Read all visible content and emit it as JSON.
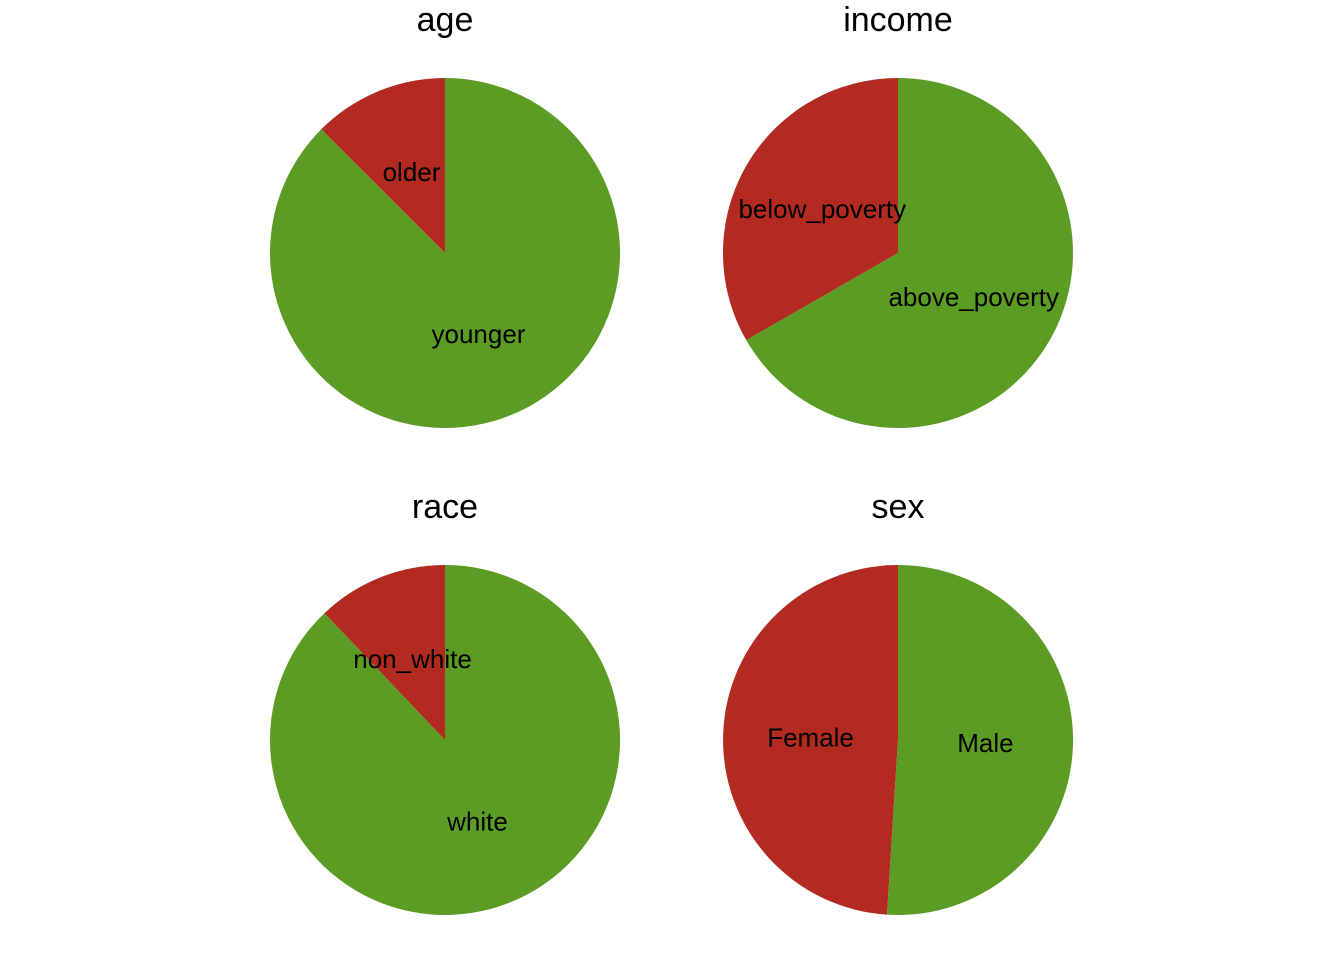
{
  "colors": {
    "first_slice": "#b22a20",
    "second_slice": "#5b9c24",
    "background": "#ffffff"
  },
  "chart_data": [
    {
      "type": "pie",
      "title": "age",
      "start": "12 o'clock",
      "direction": "counterclockwise",
      "categories": [
        "older",
        "younger"
      ],
      "values": [
        0.125,
        0.875
      ]
    },
    {
      "type": "pie",
      "title": "income",
      "start": "12 o'clock",
      "direction": "counterclockwise",
      "categories": [
        "below_poverty",
        "above_poverty"
      ],
      "values": [
        0.333,
        0.667
      ]
    },
    {
      "type": "pie",
      "title": "race",
      "start": "12 o'clock",
      "direction": "counterclockwise",
      "categories": [
        "non_white",
        "white"
      ],
      "values": [
        0.121,
        0.879
      ]
    },
    {
      "type": "pie",
      "title": "sex",
      "start": "12 o'clock",
      "direction": "counterclockwise",
      "categories": [
        "Female",
        "Male"
      ],
      "values": [
        0.49,
        0.51
      ]
    }
  ]
}
